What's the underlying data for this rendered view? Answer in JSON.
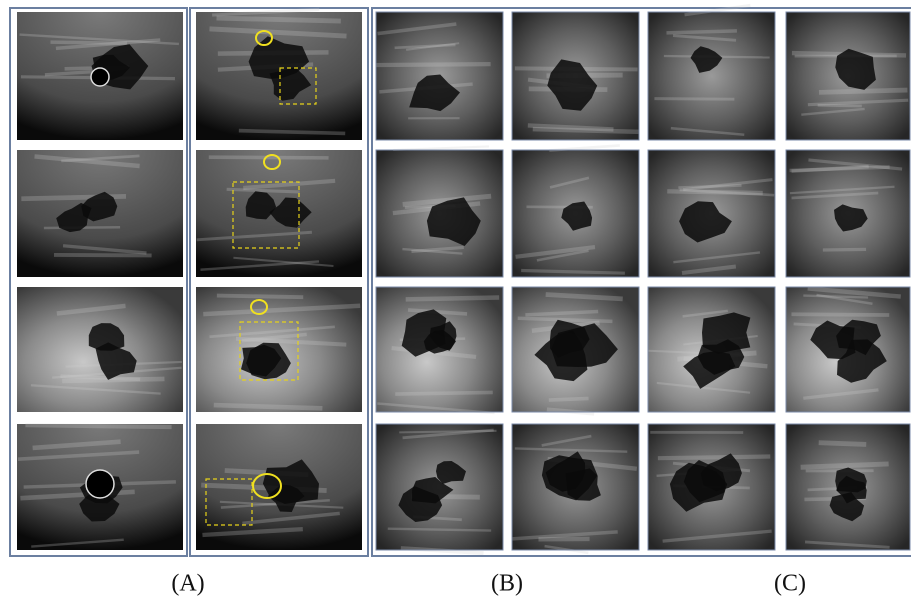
{
  "panel_labels": [
    "(A)",
    "(B)",
    "(C)"
  ]
}
